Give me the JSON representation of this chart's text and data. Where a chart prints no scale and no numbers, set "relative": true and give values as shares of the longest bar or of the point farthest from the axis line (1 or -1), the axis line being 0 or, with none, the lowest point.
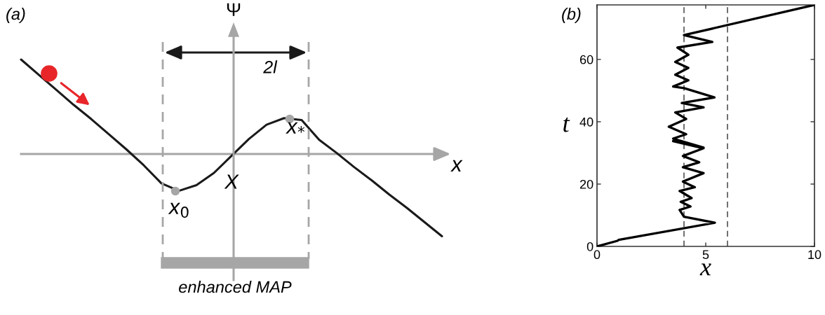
{
  "chart_data": [
    {
      "type": "line",
      "relative": true,
      "title": "(a)",
      "ylabel": "Ψ",
      "xlabel": "x",
      "categories": [
        null,
        null,
        null,
        null,
        null,
        null,
        null,
        null,
        null,
        null,
        null,
        null,
        null,
        null,
        null,
        null,
        null,
        null,
        null,
        null,
        null,
        null,
        null,
        null,
        null
      ],
      "series": [
        {
          "color": "#1a1a1a",
          "values": [
            1.0,
            0.84,
            0.68,
            0.52,
            0.37,
            0.21,
            0.05,
            -0.12,
            -0.31,
            -0.39,
            -0.33,
            -0.2,
            -0.02,
            0.16,
            0.31,
            0.38,
            0.36,
            0.15,
            0.01,
            -0.14,
            -0.28,
            -0.43,
            -0.57,
            -0.72,
            -0.87
          ]
        }
      ],
      "annotations": [
        "2l",
        "x$_{0}$",
        "X",
        "x$_{*}$",
        "enhanced MAP"
      ]
    },
    {
      "type": "line",
      "title": "(b)",
      "xlabel": "x",
      "ylabel": "t",
      "xlim": [
        0,
        10
      ],
      "ylim": [
        0,
        77.5
      ],
      "xticks": [
        0,
        5,
        10
      ],
      "yticks": [
        0,
        20,
        40,
        60
      ],
      "grid": false,
      "ref_lines": [
        {
          "axis": "x",
          "value": 4,
          "line_style": "dashed",
          "color": "#333333"
        },
        {
          "axis": "x",
          "value": 6,
          "line_style": "dashed",
          "color": "#333333"
        }
      ],
      "series": [
        {
          "color": "#000000",
          "x": [
            0,
            0.94,
            1.0,
            5.42,
            4.0,
            3.8,
            4.3,
            3.85,
            4.35,
            3.8,
            4.5,
            3.95,
            4.9,
            3.95,
            4.7,
            3.95,
            4.9,
            3.5,
            4.9,
            3.5,
            4.1,
            3.3,
            4.1,
            3.6,
            4.9,
            3.9,
            5.4,
            4.0,
            3.5,
            4.2,
            3.6,
            4.2,
            3.6,
            4.2,
            3.7,
            5.3,
            4.0,
            10
          ],
          "values": [
            0,
            1.8,
            2.1,
            7.6,
            9.5,
            11.7,
            12.8,
            14.3,
            15.5,
            17.8,
            19,
            20.8,
            23.5,
            25.4,
            27,
            29,
            31.5,
            33.8,
            31.7,
            34.6,
            36,
            38.4,
            40.9,
            43,
            44.6,
            46,
            47.8,
            50.8,
            51.3,
            53.3,
            55.1,
            57.3,
            59.2,
            61.5,
            63.8,
            65.6,
            67.8,
            77.5
          ]
        }
      ]
    }
  ]
}
